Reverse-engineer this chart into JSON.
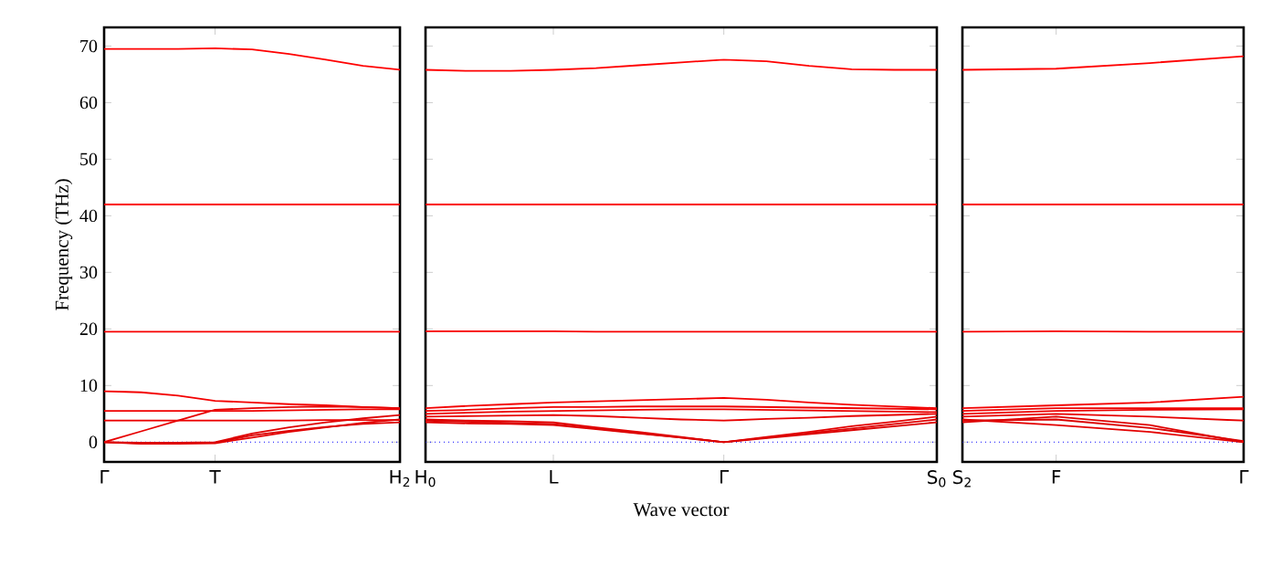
{
  "chart_data": [
    {
      "type": "line",
      "ylabel": "Frequency (THz)",
      "ylim": [
        -3.5,
        73.3
      ],
      "categories": [
        "Γ",
        null,
        null,
        "T",
        null,
        null,
        null,
        null,
        "H$_{2}$"
      ],
      "yticks": [
        0,
        10,
        20,
        30,
        40,
        50,
        60,
        70
      ],
      "ref_lines": [
        {
          "axis": "y",
          "value": 0,
          "color": "#0000ff",
          "line_style": "dotted"
        }
      ],
      "series": [
        {
          "color": "#ff0000",
          "values": [
            69.5,
            69.5,
            69.5,
            69.6,
            69.4,
            68.6,
            67.6,
            66.5,
            65.8
          ]
        },
        {
          "color": "#fb0000",
          "values": [
            42,
            42,
            42,
            42,
            42,
            42,
            42,
            42,
            42
          ]
        },
        {
          "color": "#f70000",
          "values": [
            19.5,
            19.5,
            19.5,
            19.5,
            19.5,
            19.5,
            19.5,
            19.5,
            19.5
          ]
        },
        {
          "color": "#f30000",
          "values": [
            9,
            8.8,
            8.2,
            7.3,
            7,
            6.7,
            6.5,
            6.2,
            6
          ]
        },
        {
          "color": "#ef0000",
          "values": [
            5.5,
            5.5,
            5.5,
            5.5,
            5.5,
            5.6,
            5.7,
            5.8,
            5.8
          ]
        },
        {
          "color": "#eb0000",
          "values": [
            3.8,
            3.8,
            3.8,
            3.8,
            3.8,
            3.8,
            3.9,
            3.9,
            3.9
          ]
        },
        {
          "color": "#e70000",
          "values": [
            0,
            1.9,
            3.8,
            5.7,
            6,
            6.2,
            6.3,
            6.2,
            6
          ]
        },
        {
          "color": "#e30000",
          "values": [
            0,
            -0.3,
            -0.3,
            -0.2,
            0.8,
            1.8,
            2.6,
            3.4,
            4
          ]
        },
        {
          "color": "#df0000",
          "values": [
            0,
            -0.2,
            -0.1,
            0,
            1.5,
            2.6,
            3.5,
            4.2,
            4.8
          ]
        },
        {
          "color": "#db0000",
          "values": [
            0,
            -0.1,
            -0.1,
            -0.1,
            1.2,
            2,
            2.7,
            3.2,
            3.5
          ]
        }
      ]
    },
    {
      "type": "line",
      "xlabel": "Wave vector",
      "ylim": [
        -3.5,
        73.3
      ],
      "tick_labels": "x",
      "categories": [
        "H$_{0}$",
        null,
        null,
        "L",
        null,
        null,
        null,
        "Γ",
        null,
        null,
        null,
        null,
        "S$_{0}$"
      ],
      "yticks": [
        0,
        10,
        20,
        30,
        40,
        50,
        60,
        70
      ],
      "ref_lines": [
        {
          "axis": "y",
          "value": 0,
          "color": "#0000ff",
          "line_style": "dotted"
        }
      ],
      "series": [
        {
          "color": "#ff0000",
          "values": [
            65.8,
            65.6,
            65.6,
            65.8,
            66.1,
            66.6,
            67.1,
            67.6,
            67.3,
            66.5,
            65.9,
            65.8,
            65.8
          ]
        },
        {
          "color": "#fb0000",
          "values": [
            42,
            42,
            42,
            42,
            42,
            42,
            42,
            42,
            42,
            42,
            42,
            42,
            42
          ]
        },
        {
          "color": "#f70000",
          "values": [
            19.6,
            19.6,
            19.6,
            19.6,
            19.5,
            19.5,
            19.5,
            19.5,
            19.5,
            19.5,
            19.5,
            19.5,
            19.5
          ]
        },
        {
          "color": "#f30000",
          "values": [
            6,
            6.4,
            6.7,
            7,
            7.2,
            7.4,
            7.6,
            7.8,
            7.5,
            7,
            6.6,
            6.3,
            6
          ]
        },
        {
          "color": "#ef0000",
          "values": [
            5.5,
            5.7,
            6,
            6.2,
            6.2,
            6.3,
            6.3,
            6.3,
            6.2,
            6.1,
            6,
            5.9,
            5.8
          ]
        },
        {
          "color": "#eb0000",
          "values": [
            5,
            5.2,
            5.4,
            5.5,
            5.6,
            5.7,
            5.8,
            5.8,
            5.7,
            5.6,
            5.5,
            5.4,
            5.3
          ]
        },
        {
          "color": "#e70000",
          "values": [
            4.5,
            4.6,
            4.7,
            4.8,
            4.6,
            4.3,
            4,
            3.8,
            4.1,
            4.3,
            4.6,
            4.8,
            5
          ]
        },
        {
          "color": "#e30000",
          "values": [
            4,
            3.8,
            3.7,
            3.5,
            2.6,
            1.8,
            0.9,
            0,
            0.9,
            1.8,
            2.8,
            3.6,
            4.5
          ]
        },
        {
          "color": "#df0000",
          "values": [
            3.5,
            3.3,
            3.2,
            3,
            2.3,
            1.5,
            0.8,
            0,
            0.8,
            1.6,
            2.4,
            3.2,
            4
          ]
        },
        {
          "color": "#db0000",
          "values": [
            3.8,
            3.6,
            3.4,
            3.2,
            2.4,
            1.6,
            0.8,
            0,
            0.7,
            1.4,
            2.1,
            2.8,
            3.5
          ]
        }
      ]
    },
    {
      "type": "line",
      "ylim": [
        -3.5,
        73.3
      ],
      "tick_labels": "x",
      "categories": [
        "S$_{2}$",
        "F",
        null,
        "Γ"
      ],
      "yticks": [
        0,
        10,
        20,
        30,
        40,
        50,
        60,
        70
      ],
      "ref_lines": [
        {
          "axis": "y",
          "value": 0,
          "color": "#0000ff",
          "line_style": "dotted"
        }
      ],
      "series": [
        {
          "color": "#ff0000",
          "values": [
            65.8,
            66,
            67,
            68.2
          ]
        },
        {
          "color": "#fb0000",
          "values": [
            42,
            42,
            42,
            42
          ]
        },
        {
          "color": "#f70000",
          "values": [
            19.5,
            19.6,
            19.5,
            19.5
          ]
        },
        {
          "color": "#f30000",
          "values": [
            6,
            6.5,
            7,
            8
          ]
        },
        {
          "color": "#ef0000",
          "values": [
            5.5,
            6,
            6,
            6
          ]
        },
        {
          "color": "#eb0000",
          "values": [
            5,
            5.5,
            5.7,
            5.8
          ]
        },
        {
          "color": "#e70000",
          "values": [
            4.5,
            5,
            4.5,
            3.8
          ]
        },
        {
          "color": "#e30000",
          "values": [
            4,
            3,
            1.8,
            0
          ]
        },
        {
          "color": "#df0000",
          "values": [
            3.5,
            4.5,
            3,
            0
          ]
        },
        {
          "color": "#db0000",
          "values": [
            3.8,
            4,
            2.5,
            0.2
          ]
        }
      ]
    }
  ]
}
